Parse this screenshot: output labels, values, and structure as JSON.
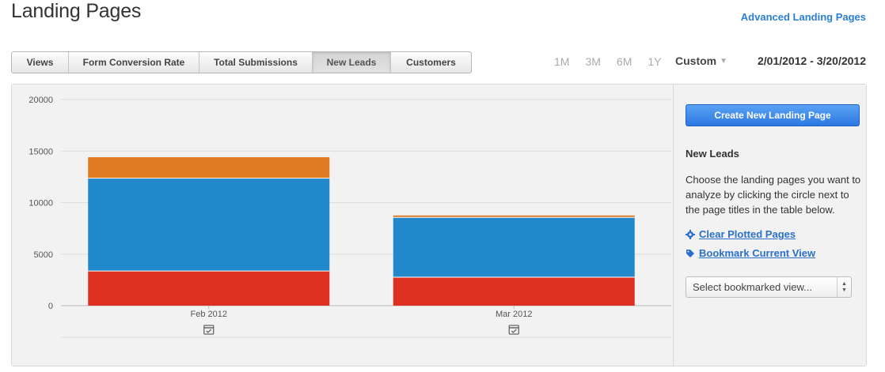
{
  "header": {
    "title": "Landing Pages",
    "advanced_link": "Advanced Landing Pages"
  },
  "tabs": [
    {
      "label": "Views",
      "active": false
    },
    {
      "label": "Form Conversion Rate",
      "active": false
    },
    {
      "label": "Total Submissions",
      "active": false
    },
    {
      "label": "New Leads",
      "active": true
    },
    {
      "label": "Customers",
      "active": false
    }
  ],
  "range": {
    "options": [
      "1M",
      "3M",
      "6M",
      "1Y"
    ],
    "custom_label": "Custom",
    "date_range": "2/01/2012 - 3/20/2012"
  },
  "sidebar": {
    "create_button": "Create New Landing Page",
    "heading": "New Leads",
    "description": "Choose the landing pages you want to analyze by clicking the circle next to the page titles in the table below.",
    "clear_link": "Clear Plotted Pages",
    "bookmark_link": "Bookmark Current View",
    "select_placeholder": "Select bookmarked view...",
    "clear_icon": "gear-icon",
    "bookmark_icon": "tag-icon"
  },
  "chart_data": {
    "type": "bar",
    "stacked": true,
    "categories": [
      "Feb 2012",
      "Mar 2012"
    ],
    "series": [
      {
        "color": "#de3020",
        "values": [
          3400,
          2800
        ]
      },
      {
        "color": "#2288cc",
        "values": [
          9000,
          5800
        ]
      },
      {
        "color": "#e07a22",
        "values": [
          2000,
          150
        ]
      }
    ],
    "ylim": [
      0,
      20000
    ],
    "yticks": [
      "0",
      "5000",
      "10000",
      "15000",
      "20000"
    ],
    "grid": true,
    "annotation_icon": "calendar-check-icon"
  }
}
